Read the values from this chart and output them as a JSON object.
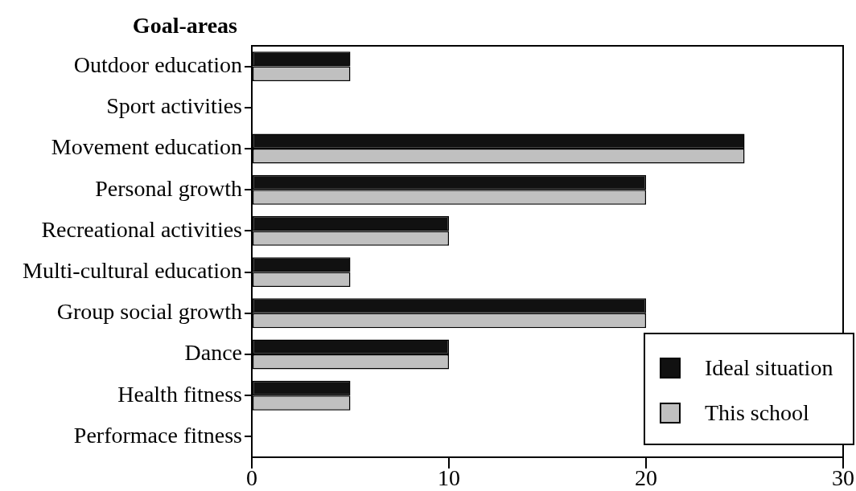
{
  "chart_data": {
    "type": "bar",
    "orientation": "horizontal",
    "ylabel": "Goal-areas",
    "categories": [
      "Outdoor education",
      "Sport activities",
      "Movement education",
      "Personal growth",
      "Recreational activities",
      "Multi-cultural education",
      "Group social growth",
      "Dance",
      "Health fitness",
      "Performace fitness"
    ],
    "series": [
      {
        "name": "Ideal situation",
        "color": "#111111",
        "values": [
          5,
          0,
          25,
          20,
          10,
          5,
          20,
          10,
          5,
          0
        ]
      },
      {
        "name": "This school",
        "color": "#c0c0c0",
        "values": [
          5,
          0,
          25,
          20,
          10,
          5,
          20,
          10,
          5,
          0
        ]
      }
    ],
    "xlim": [
      0,
      30
    ],
    "xticks": [
      0,
      10,
      20,
      30
    ],
    "grid": false,
    "legend": "bottom right"
  }
}
